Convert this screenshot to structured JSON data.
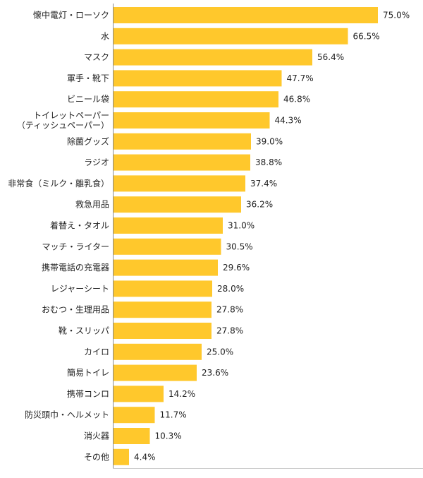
{
  "chart_data": {
    "type": "bar",
    "orientation": "horizontal",
    "title": "",
    "xlabel": "",
    "ylabel": "",
    "unit": "%",
    "xlim": [
      0,
      80
    ],
    "grid": false,
    "legend": "none",
    "bar_color": "#FFC82C",
    "categories": [
      "懐中電灯・ローソク",
      "水",
      "マスク",
      "軍手・靴下",
      "ビニール袋",
      "トイレットペーパー\n（ティッシュペーパー）",
      "除菌グッズ",
      "ラジオ",
      "非常食（ミルク・離乳食）",
      "救急用品",
      "着替え・タオル",
      "マッチ・ライター",
      "携帯電話の充電器",
      "レジャーシート",
      "おむつ・生理用品",
      "靴・スリッパ",
      "カイロ",
      "簡易トイレ",
      "携帯コンロ",
      "防災頭巾・ヘルメット",
      "消火器",
      "その他"
    ],
    "values": [
      75.0,
      66.5,
      56.4,
      47.7,
      46.8,
      44.3,
      39.0,
      38.8,
      37.4,
      36.2,
      31.0,
      30.5,
      29.6,
      28.0,
      27.8,
      27.8,
      25.0,
      23.6,
      14.2,
      11.7,
      10.3,
      4.4
    ],
    "value_labels": [
      "75.0%",
      "66.5%",
      "56.4%",
      "47.7%",
      "46.8%",
      "44.3%",
      "39.0%",
      "38.8%",
      "37.4%",
      "36.2%",
      "31.0%",
      "30.5%",
      "29.6%",
      "28.0%",
      "27.8%",
      "27.8%",
      "25.0%",
      "23.6%",
      "14.2%",
      "11.7%",
      "10.3%",
      "4.4%"
    ]
  }
}
